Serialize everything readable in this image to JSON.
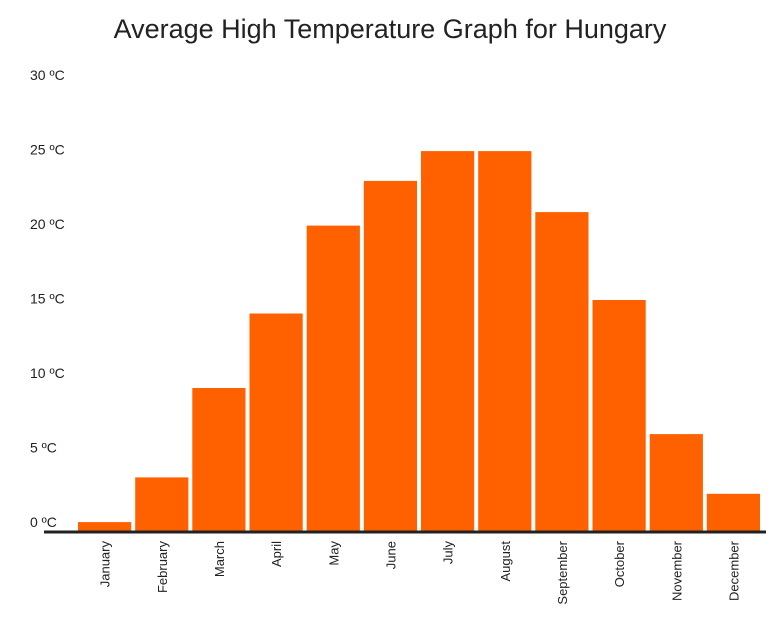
{
  "chart_data": {
    "type": "bar",
    "title": "Average High Temperature Graph for Hungary",
    "xlabel": "",
    "ylabel": "",
    "categories": [
      "January",
      "February",
      "March",
      "April",
      "May",
      "June",
      "July",
      "August",
      "September",
      "October",
      "November",
      "December"
    ],
    "values": [
      0.6,
      3.6,
      9.6,
      14.6,
      20.5,
      23.5,
      25.5,
      25.5,
      21.4,
      15.5,
      6.5,
      2.5
    ],
    "ylim": [
      0,
      30
    ],
    "yticks": [
      "0 ºC",
      "5 ºC",
      "10 ºC",
      "15 ºC",
      "20 ºC",
      "25 ºC",
      "30 ºC"
    ],
    "grid": false,
    "legend": "none",
    "bar_color": "#ff6100",
    "axis_color": "#222222"
  }
}
